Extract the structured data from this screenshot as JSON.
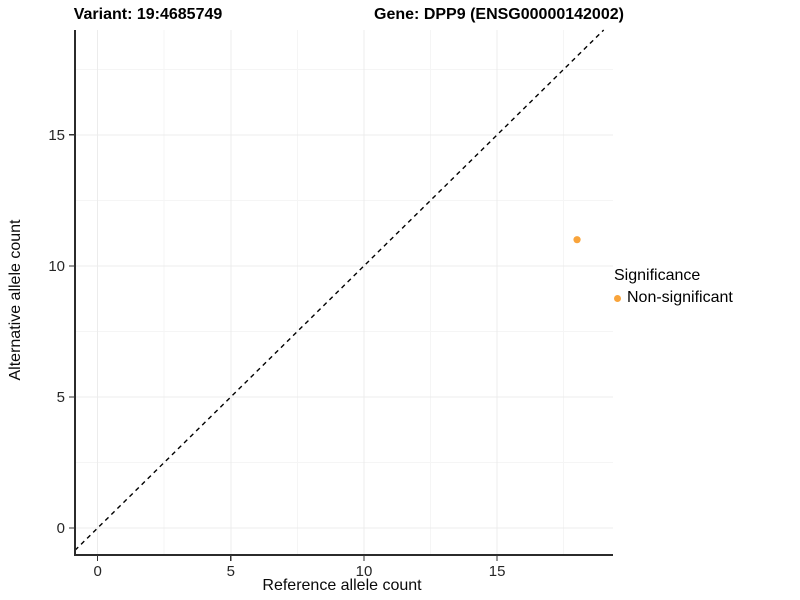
{
  "titles": {
    "variant": "Variant: 19:4685749",
    "gene": "Gene: DPP9 (ENSG00000142002)"
  },
  "chart_data": {
    "type": "scatter",
    "xlabel": "Reference allele count",
    "ylabel": "Alternative allele count",
    "x_ticks": [
      0,
      5,
      10,
      15
    ],
    "y_ticks": [
      0,
      5,
      10,
      15
    ],
    "minor_ticks_x": [
      2.5,
      7.5,
      12.5,
      17.5
    ],
    "minor_ticks_y": [
      2.5,
      7.5,
      12.5,
      17.5
    ],
    "xlim": [
      -0.85,
      19.35
    ],
    "ylim": [
      -1.03,
      19.0
    ],
    "points": [
      {
        "x": 18,
        "y": 11,
        "series": "Non-significant"
      }
    ],
    "reference_line": {
      "type": "identity",
      "intercept": 0,
      "slope": 1,
      "style": "dashed"
    },
    "grid": "major+minor",
    "legend_position": "right"
  },
  "legend": {
    "title": "Significance",
    "items": [
      {
        "label": "Non-significant",
        "color": "#F9A43B"
      }
    ]
  },
  "colors": {
    "point": "#F9A43B",
    "axis_line": "#2b2b2b",
    "tick_mark": "#333333",
    "tick_text": "#262626",
    "grid_major": "#ececec",
    "grid_minor": "#f5f5f5",
    "dashed_line": "#000000",
    "background": "#ffffff"
  }
}
